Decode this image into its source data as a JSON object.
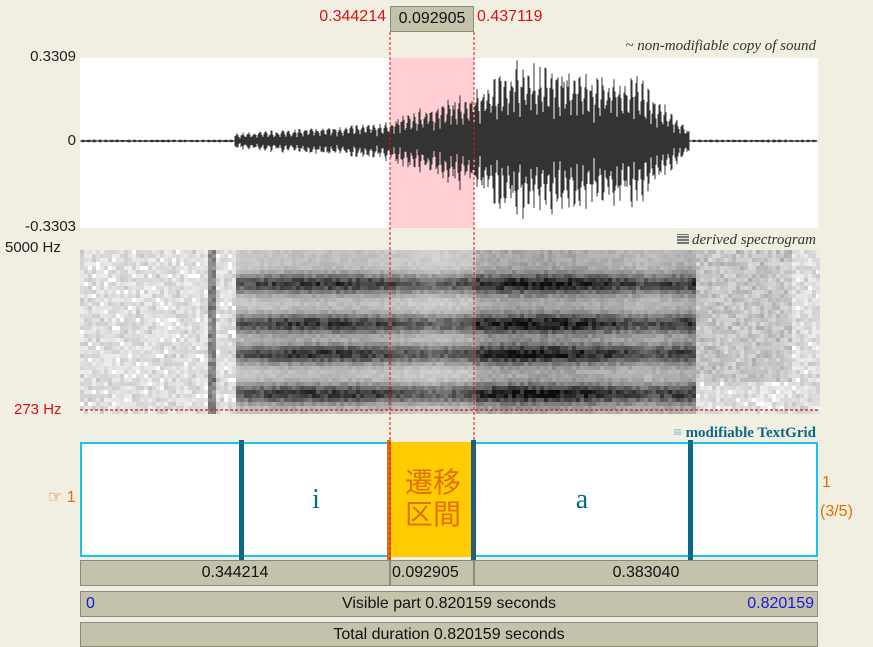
{
  "selection": {
    "start": "0.344214",
    "duration": "0.092905",
    "end": "0.437119"
  },
  "sound": {
    "title": "~ non-modifiable copy of sound",
    "ymax": "0.3309",
    "yzero": "0",
    "ymin": "-0.3303"
  },
  "spectrogram": {
    "title": "derived spectrogram",
    "fmax": "5000 Hz",
    "fmin": "273 Hz"
  },
  "textgrid": {
    "title": "modifiable TextGrid",
    "tier_number": "1",
    "tier_count": "(3/5)",
    "intervals": [
      "i",
      "遷移区間",
      "a"
    ]
  },
  "durations": [
    "0.344214",
    "0.092905",
    "0.383040"
  ],
  "visible": {
    "start": "0",
    "label": "Visible part 0.820159 seconds",
    "end": "0.820159"
  },
  "total": "Total duration 0.820159 seconds"
}
